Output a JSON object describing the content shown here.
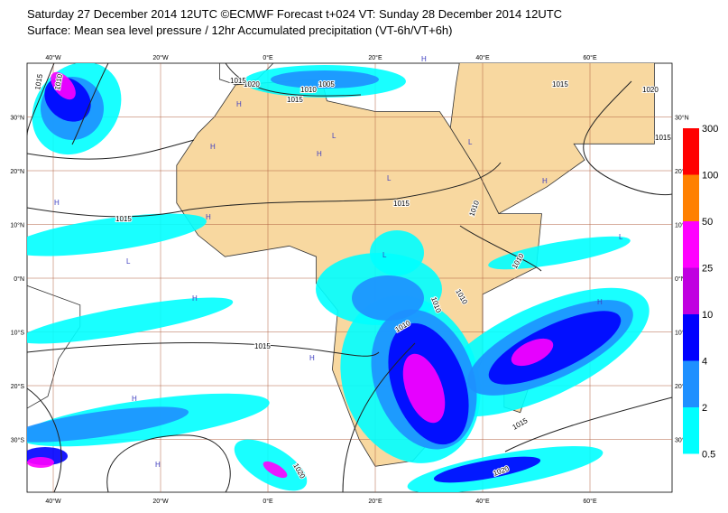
{
  "header": {
    "line1": "Saturday 27 December 2014 12UTC ©ECMWF Forecast t+024 VT: Sunday 28 December 2014 12UTC",
    "line2": "Surface: Mean sea level pressure / 12hr Accumulated precipitation (VT-6h/VT+6h)"
  },
  "map": {
    "lon_labels": [
      "40°W",
      "20°W",
      "0°E",
      "20°E",
      "40°E",
      "60°E"
    ],
    "lat_labels": [
      "30°N",
      "20°N",
      "10°N",
      "0°N",
      "10°S",
      "20°S",
      "30°S"
    ],
    "isobar_labels": [
      "1015",
      "1010",
      "1020",
      "1015",
      "1010",
      "1005",
      "1015",
      "1015",
      "1020",
      "1015",
      "1015",
      "1015",
      "1010",
      "1010",
      "1010",
      "1010",
      "1010",
      "1015",
      "1015",
      "1020",
      "1020"
    ],
    "pressure_centers": [
      "H",
      "H",
      "L",
      "H",
      "H",
      "L",
      "L",
      "H",
      "L",
      "H",
      "H",
      "L",
      "H",
      "H",
      "L",
      "H",
      "H",
      "H"
    ]
  },
  "legend": {
    "labels": [
      "300",
      "100",
      "50",
      "25",
      "10",
      "4",
      "2",
      "0.5"
    ],
    "colors": [
      "#ff0000",
      "#ff8000",
      "#ff00ff",
      "#c000e0",
      "#0000ff",
      "#1e90ff",
      "#00ffff"
    ]
  }
}
